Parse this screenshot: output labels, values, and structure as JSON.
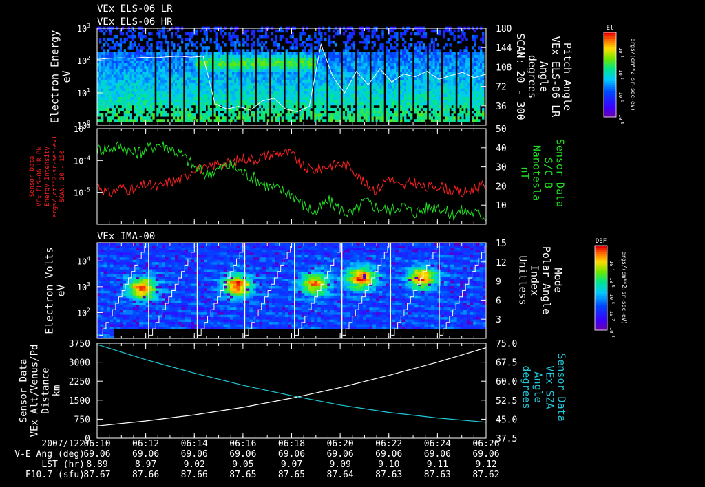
{
  "titles": [
    "VEx ELS-06 LR",
    "VEx ELS-06 HR"
  ],
  "colors": {
    "background": "#000000",
    "axis": "#ffffff",
    "series_red": "#ff2020",
    "series_green": "#20e020",
    "series_white": "#ffffff",
    "series_cyan": "#22c8d8"
  },
  "chart_data": [
    {
      "id": "panel1",
      "type": "heatmap",
      "left_label": [
        "Electron Energy",
        "eV"
      ],
      "right_label": [
        "Pitch Angle",
        "VEx ELS-06 LR",
        "Angle",
        "degrees",
        "SCAN: 20 - 300"
      ],
      "y_scale": "log",
      "ylim": [
        1,
        1000
      ],
      "y_ticks": [
        {
          "v": 1,
          "label": "10",
          "exp": "0"
        },
        {
          "v": 10,
          "label": "10",
          "exp": "1"
        },
        {
          "v": 100,
          "label": "10",
          "exp": "2"
        },
        {
          "v": 1000,
          "label": "10",
          "exp": "3"
        }
      ],
      "y2lim": [
        0,
        180
      ],
      "y2_ticks": [
        "36",
        "72",
        "108",
        "144",
        "180"
      ],
      "colorbar": {
        "title": "El",
        "unit": "ergs/(cm**2-sr-sec-eV)",
        "ticks": [
          {
            "label": "10",
            "exp": "-4"
          },
          {
            "label": "10",
            "exp": "-5"
          },
          {
            "label": "10",
            "exp": "-6"
          },
          {
            "label": "10",
            "exp": "-5"
          }
        ]
      },
      "sweep_count": 27,
      "white_line": {
        "y2_values": [
          122,
          124,
          125,
          124,
          126,
          125,
          127,
          128,
          126,
          128,
          40,
          30,
          35,
          28,
          45,
          50,
          30,
          25,
          35,
          150,
          90,
          60,
          100,
          75,
          105,
          80,
          95,
          90,
          100,
          85,
          92,
          98,
          88,
          95
        ]
      }
    },
    {
      "id": "panel2",
      "type": "line",
      "left_label": [
        "Sensor Data",
        "VEx ELS-06 LR Bk",
        "Energy Intensity",
        "ergs/(cm**2-sr-sec-eV)",
        "SCAN: 20 - 150"
      ],
      "right_label": [
        "Sensor Data",
        "S/C B",
        "Nanotesla",
        "nT"
      ],
      "y_scale": "log",
      "ylim": [
        1e-06,
        0.001
      ],
      "y_ticks": [
        {
          "v": 1e-05,
          "label": "10",
          "exp": "-5"
        },
        {
          "v": 0.0001,
          "label": "10",
          "exp": "-4"
        },
        {
          "v": 0.001,
          "label": "10",
          "exp": "-3"
        }
      ],
      "y2lim": [
        0,
        50
      ],
      "y2_ticks": [
        "10",
        "20",
        "30",
        "40",
        "50"
      ],
      "series": [
        {
          "axis": "left",
          "color": "red",
          "x": [
            0,
            0.5,
            1,
            1.5,
            2,
            2.5,
            3,
            3.5,
            4,
            4.5,
            5,
            5.5,
            6,
            6.5,
            7,
            7.5,
            8,
            8.5,
            9,
            9.5,
            10,
            10.5,
            11,
            11.5,
            12,
            12.5,
            13,
            13.5,
            14,
            14.5,
            15,
            15.5,
            16
          ],
          "values": [
            1.8e-05,
            9e-06,
            1.5e-05,
            1.1e-05,
            1.8e-05,
            1.4e-05,
            2.2e-05,
            2.5e-05,
            6e-05,
            5e-05,
            9e-05,
            8e-05,
            0.00012,
            0.00011,
            0.00015,
            0.00018,
            0.00016,
            6e-05,
            5e-05,
            7e-05,
            8e-05,
            6e-05,
            1.8e-05,
            1.2e-05,
            3e-05,
            1.4e-05,
            2.2e-05,
            1.3e-05,
            1.7e-05,
            1.2e-05,
            9e-06,
            1.4e-05,
            1.6e-05
          ]
        },
        {
          "axis": "right",
          "color": "green",
          "x": [
            0,
            0.5,
            1,
            1.5,
            2,
            2.5,
            3,
            3.5,
            4,
            4.5,
            5,
            5.5,
            6,
            6.5,
            7,
            7.5,
            8,
            8.5,
            9,
            9.5,
            10,
            10.5,
            11,
            11.5,
            12,
            12.5,
            13,
            13.5,
            14,
            14.5,
            15,
            15.5,
            16
          ],
          "values": [
            39,
            40,
            41,
            37,
            39,
            42,
            40,
            36,
            30,
            26,
            29,
            31,
            27,
            24,
            20,
            18,
            16,
            10,
            6,
            12,
            8,
            5,
            12,
            9,
            7,
            10,
            6,
            8,
            10,
            5,
            7,
            6,
            4
          ]
        }
      ]
    },
    {
      "id": "panel3",
      "type": "heatmap",
      "subtitle": "VEx IMA-00",
      "left_label": [
        "Electron Volts",
        "eV"
      ],
      "right_label": [
        "Mode",
        "Polar Angle",
        "Index",
        "Unitless"
      ],
      "y_scale": "log",
      "ylim": [
        10,
        50000
      ],
      "y_ticks": [
        {
          "v": 100,
          "label": "10",
          "exp": "2"
        },
        {
          "v": 1000,
          "label": "10",
          "exp": "3"
        },
        {
          "v": 10000,
          "label": "10",
          "exp": "4"
        }
      ],
      "y2lim": [
        0,
        15
      ],
      "y2_ticks": [
        "3",
        "6",
        "9",
        "12",
        "15"
      ],
      "colorbar": {
        "title": "DEF",
        "unit": "ergs/(cm**2-sr-sec-eV)",
        "ticks": [
          {
            "label": "10",
            "exp": "-4"
          },
          {
            "label": "10",
            "exp": "-5"
          },
          {
            "label": "10",
            "exp": "-6"
          },
          {
            "label": "10",
            "exp": "-7"
          },
          {
            "label": "10",
            "exp": "-8"
          }
        ]
      },
      "scan_starts": [
        0.1,
        2.15,
        4.15,
        6.1,
        8.15,
        10.1,
        12.1,
        14.1
      ],
      "scan_length": 1.85,
      "hot_spots": [
        {
          "t": 1.8,
          "e": 800,
          "level": 0.95
        },
        {
          "t": 5.7,
          "e": 1000,
          "level": 1.0
        },
        {
          "t": 8.9,
          "e": 1200,
          "level": 0.9
        },
        {
          "t": 10.8,
          "e": 2000,
          "level": 1.0
        },
        {
          "t": 13.3,
          "e": 2000,
          "level": 0.95
        }
      ]
    },
    {
      "id": "panel4",
      "type": "line",
      "left_label": [
        "Sensor Data",
        "VEx Alt/Venus/Pd",
        "Distance",
        "km"
      ],
      "right_label": [
        "Sensor Data",
        "VEx SZA",
        "Angle",
        "degrees"
      ],
      "ylim": [
        0,
        3750
      ],
      "y_ticks": [
        "0",
        "750",
        "1500",
        "2250",
        "3000",
        "3750"
      ],
      "y2lim": [
        37.5,
        75.0
      ],
      "y2_ticks": [
        "37.5",
        "45.0",
        "52.5",
        "60.0",
        "67.5",
        "75.0"
      ],
      "series": [
        {
          "axis": "left",
          "color": "white",
          "x": [
            0,
            2,
            4,
            6,
            8,
            10,
            12,
            14,
            16
          ],
          "values": [
            480,
            680,
            920,
            1220,
            1580,
            2000,
            2480,
            3000,
            3570
          ]
        },
        {
          "axis": "right",
          "color": "cyan",
          "x": [
            0,
            2,
            4,
            6,
            8,
            10,
            12,
            14,
            16
          ],
          "values": [
            74.5,
            68.5,
            63.2,
            58.4,
            54.3,
            50.6,
            47.7,
            45.5,
            43.8
          ]
        }
      ]
    }
  ],
  "time_axis": {
    "xlim": [
      0,
      16
    ],
    "major_ticks": [
      0,
      2,
      4,
      6,
      8,
      10,
      12,
      14,
      16
    ],
    "labels": [
      "06:10",
      "06:12",
      "06:14",
      "06:16",
      "06:18",
      "06:20",
      "06:22",
      "06:24",
      "06:26"
    ],
    "minor_step": 0.5
  },
  "ephemeris": [
    {
      "label": "2007/122",
      "values": [
        "06:10",
        "06:12",
        "06:14",
        "06:16",
        "06:18",
        "06:20",
        "06:22",
        "06:24",
        "06:26"
      ]
    },
    {
      "label": "V-E Ang (deg)",
      "values": [
        "69.06",
        "69.06",
        "69.06",
        "69.06",
        "69.06",
        "69.06",
        "69.06",
        "69.06",
        "69.06"
      ]
    },
    {
      "label": "LST (hr)",
      "values": [
        "8.89",
        "8.97",
        "9.02",
        "9.05",
        "9.07",
        "9.09",
        "9.10",
        "9.11",
        "9.12"
      ]
    },
    {
      "label": "F10.7 (sfu)",
      "values": [
        "87.67",
        "87.66",
        "87.66",
        "87.65",
        "87.65",
        "87.64",
        "87.63",
        "87.63",
        "87.62"
      ]
    }
  ]
}
